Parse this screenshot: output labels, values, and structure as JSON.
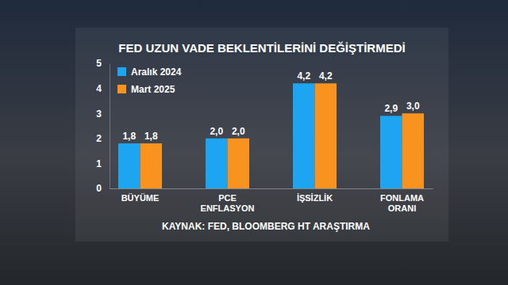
{
  "chart_data": {
    "type": "bar",
    "title": "FED UZUN VADE BEKLENTİLERİNİ DEĞİŞTİRMEDİ",
    "categories": [
      "BÜYÜME",
      "PCE ENFLASYON",
      "İŞSİZLİK",
      "FONLAMA ORANI"
    ],
    "series": [
      {
        "name": "Aralık 2024",
        "color": "#1ea5f2",
        "values": [
          1.8,
          2.0,
          4.2,
          2.9
        ],
        "value_labels": [
          "1,8",
          "2,0",
          "4,2",
          "2,9"
        ]
      },
      {
        "name": "Mart 2025",
        "color": "#f7931e",
        "values": [
          1.8,
          2.0,
          4.2,
          3.0
        ],
        "value_labels": [
          "1,8",
          "2,0",
          "4,2",
          "3,0"
        ]
      }
    ],
    "ylim": [
      0,
      5
    ],
    "yticks": [
      0,
      1,
      2,
      3,
      4,
      5
    ],
    "grid": false,
    "legend": "upper left",
    "data_labels": true,
    "annotations": [
      "KAYNAK: FED, BLOOMBERG HT ARAŞTIRMA"
    ]
  }
}
